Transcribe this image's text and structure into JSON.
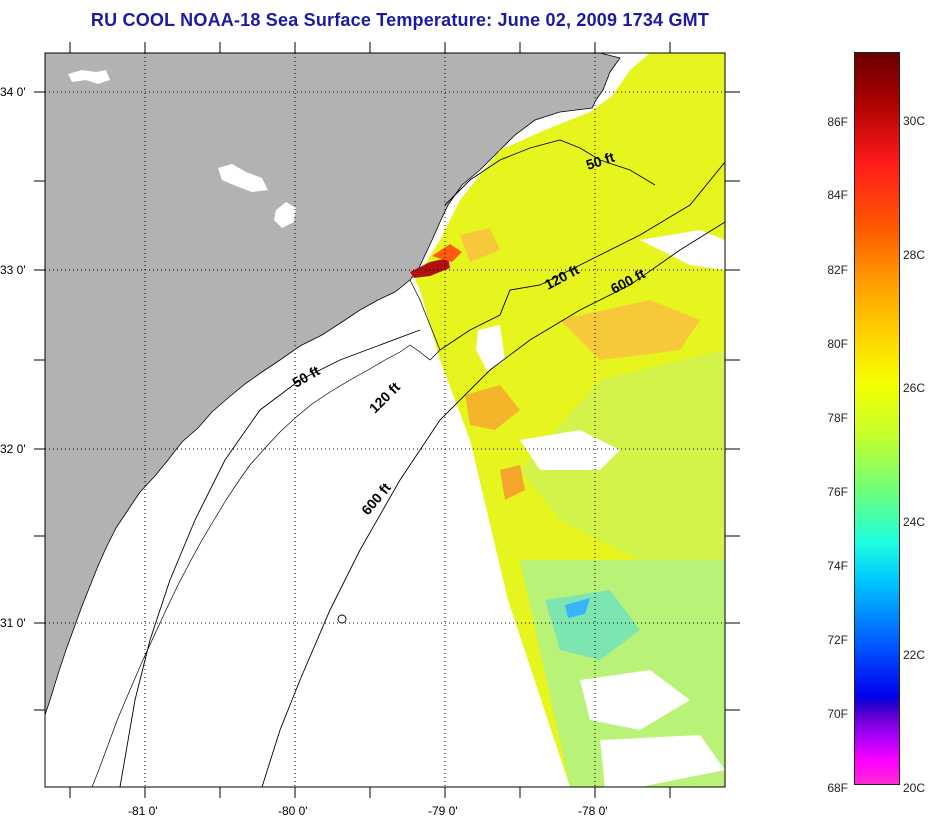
{
  "title": "RU COOL  NOAA-18  Sea Surface Temperature:  June 02, 2009 1734 GMT",
  "map": {
    "lat_ticks": [
      "34 0'",
      "33 0'",
      "32 0'",
      "31 0'"
    ],
    "lon_ticks": [
      "-81 0'",
      "-80 0'",
      "-79 0'",
      "-78 0'"
    ],
    "isobath_labels": [
      "50 ft",
      "120 ft",
      "600 ft",
      "50 ft",
      "120 ft",
      "600 ft"
    ],
    "colors": {
      "land": "#b2b2b2",
      "coast": "#000000",
      "grid": "#000000"
    }
  },
  "colorbar": {
    "fahrenheit_ticks": [
      "86F",
      "84F",
      "82F",
      "80F",
      "78F",
      "76F",
      "74F",
      "72F",
      "70F",
      "68F"
    ],
    "celsius_ticks": [
      "30C",
      "28C",
      "26C",
      "24C",
      "22C",
      "20C"
    ]
  }
}
